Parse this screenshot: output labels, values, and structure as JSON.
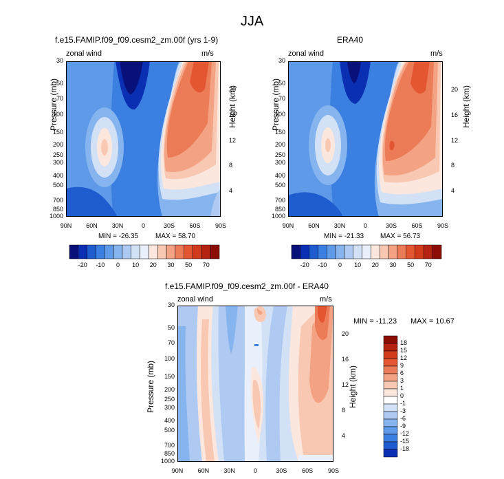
{
  "figure": {
    "title": "JJA"
  },
  "colors": {
    "cool": [
      "#08117a",
      "#0b2fb3",
      "#1f5ccf",
      "#3b7fe0",
      "#5f9ae8",
      "#86b4ef",
      "#aecaf2",
      "#d2e1f6",
      "#e9f0fb"
    ],
    "warm": [
      "#fbe7dd",
      "#f8c8b2",
      "#f3a283",
      "#ec7b58",
      "#e45632",
      "#d23a1c",
      "#b42212",
      "#8c0c06"
    ]
  },
  "chart_data": [
    {
      "id": "model",
      "type": "heatmap",
      "title": "f.e15.FAMIP.f09_f09.cesm2_zm.00f (yrs 1-9)",
      "variable": "zonal wind",
      "units": "m/s",
      "ylabel_left": "Pressure (mb)",
      "ylabel_right": "Height (km)",
      "x_ticks": [
        "90N",
        "60N",
        "30N",
        "0",
        "30S",
        "60S",
        "90S"
      ],
      "y_ticks_left": [
        30,
        50,
        70,
        100,
        150,
        200,
        250,
        300,
        400,
        500,
        700,
        850,
        1000
      ],
      "y_ticks_right": [
        20,
        16,
        12,
        8,
        4
      ],
      "min_text": "MIN = -26.35",
      "max_text": "MAX = 58.70",
      "colorbar_labels": [
        "-20",
        "-10",
        "0",
        "10",
        "20",
        "30",
        "50",
        "70"
      ]
    },
    {
      "id": "era40",
      "type": "heatmap",
      "title": "ERA40",
      "variable": "zonal wind",
      "units": "m/s",
      "ylabel_left": "Pressure (mb)",
      "ylabel_right": "Height (km)",
      "x_ticks": [
        "90N",
        "60N",
        "30N",
        "0",
        "30S",
        "60S",
        "90S"
      ],
      "y_ticks_left": [
        30,
        50,
        70,
        100,
        150,
        200,
        250,
        300,
        400,
        500,
        700,
        850,
        1000
      ],
      "y_ticks_right": [
        20,
        16,
        12,
        8,
        4
      ],
      "min_text": "MIN = -21.33",
      "max_text": "MAX = 56.73",
      "colorbar_labels": [
        "-20",
        "-10",
        "0",
        "10",
        "20",
        "30",
        "50",
        "70"
      ]
    },
    {
      "id": "diff",
      "type": "heatmap",
      "title": "f.e15.FAMIP.f09_f09.cesm2_zm.00f - ERA40",
      "variable": "zonal wind",
      "units": "m/s",
      "ylabel_left": "Pressure (mb)",
      "ylabel_right": "Height (km)",
      "x_ticks": [
        "90N",
        "60N",
        "30N",
        "0",
        "30S",
        "60S",
        "90S"
      ],
      "y_ticks_left": [
        30,
        50,
        70,
        100,
        150,
        200,
        250,
        300,
        400,
        500,
        700,
        850,
        1000
      ],
      "y_ticks_right": [
        20,
        16,
        12,
        8,
        4
      ],
      "min_text": "MIN = -11.23",
      "max_text": "MAX = 10.67",
      "colorbar_labels": [
        "18",
        "15",
        "12",
        "9",
        "6",
        "3",
        "1",
        "0",
        "-1",
        "-3",
        "-6",
        "-9",
        "-12",
        "-15",
        "-18"
      ]
    }
  ]
}
